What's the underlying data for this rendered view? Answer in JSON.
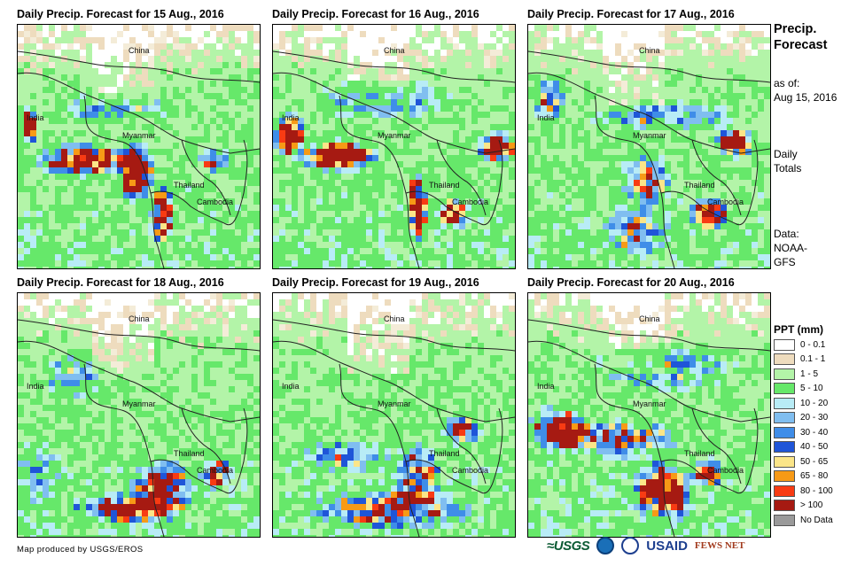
{
  "panels": [
    {
      "title": "Daily Precip. Forecast for 15 Aug., 2016",
      "variant": 0
    },
    {
      "title": "Daily Precip. Forecast for 16 Aug., 2016",
      "variant": 1
    },
    {
      "title": "Daily Precip. Forecast for 17 Aug., 2016",
      "variant": 2
    },
    {
      "title": "Daily Precip. Forecast for 18 Aug., 2016",
      "variant": 3
    },
    {
      "title": "Daily Precip. Forecast for 19 Aug., 2016",
      "variant": 4
    },
    {
      "title": "Daily Precip. Forecast for 20 Aug., 2016",
      "variant": 5
    }
  ],
  "map_labels": {
    "china": "China",
    "india": "India",
    "myanmar": "Myanmar",
    "thailand": "Thailand",
    "cambodia": "Cambodia"
  },
  "sidebar": {
    "title_line1": "Precip.",
    "title_line2": "Forecast",
    "asof_line1": "as of:",
    "asof_line2": "Aug 15, 2016",
    "daily_line1": "Daily",
    "daily_line2": "Totals",
    "data_line1": "Data:",
    "data_line2": "NOAA-",
    "data_line3": "GFS"
  },
  "legend": {
    "title": "PPT (mm)",
    "items": [
      {
        "label": "0 - 0.1",
        "color": "#ffffff"
      },
      {
        "label": "0.1 - 1",
        "color": "#eedcbe"
      },
      {
        "label": "1 - 5",
        "color": "#b3f4a8"
      },
      {
        "label": "5 - 10",
        "color": "#66e86a"
      },
      {
        "label": "10 - 20",
        "color": "#b8ecf6"
      },
      {
        "label": "20 - 30",
        "color": "#80bef0"
      },
      {
        "label": "30 - 40",
        "color": "#3f8de8"
      },
      {
        "label": "40 - 50",
        "color": "#1f55d8"
      },
      {
        "label": "50 - 65",
        "color": "#fbe588"
      },
      {
        "label": "65 - 80",
        "color": "#f79a16"
      },
      {
        "label": "80 - 100",
        "color": "#f83b13"
      },
      {
        "label": "> 100",
        "color": "#a61a12"
      },
      {
        "label": "No Data",
        "color": "#9a9a9a"
      }
    ]
  },
  "footer": {
    "credit": "Map produced by USGS/EROS",
    "logo_usgs": "≈USGS",
    "logo_usaid": "USAID",
    "logo_fews": "FEWS NET"
  }
}
